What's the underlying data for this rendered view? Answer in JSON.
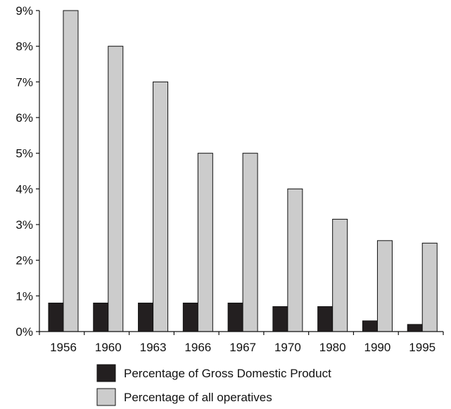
{
  "chart_data": {
    "type": "bar",
    "title": "",
    "xlabel": "",
    "ylabel": "",
    "categories": [
      "1956",
      "1960",
      "1963",
      "1966",
      "1967",
      "1970",
      "1980",
      "1990",
      "1995"
    ],
    "series": [
      {
        "name": "Percentage of Gross Domestic Product",
        "color": "#231f20",
        "values": [
          0.8,
          0.8,
          0.8,
          0.8,
          0.8,
          0.7,
          0.7,
          0.3,
          0.2
        ]
      },
      {
        "name": "Percentage of all operatives",
        "color": "#cccccc",
        "values": [
          9.0,
          8.0,
          7.0,
          5.0,
          5.0,
          4.0,
          3.15,
          2.55,
          2.48
        ]
      }
    ],
    "ylim": [
      0,
      9
    ],
    "yticks": [
      "0%",
      "1%",
      "2%",
      "3%",
      "4%",
      "5%",
      "6%",
      "7%",
      "8%",
      "9%"
    ],
    "grid": false,
    "legend_position": "bottom"
  }
}
